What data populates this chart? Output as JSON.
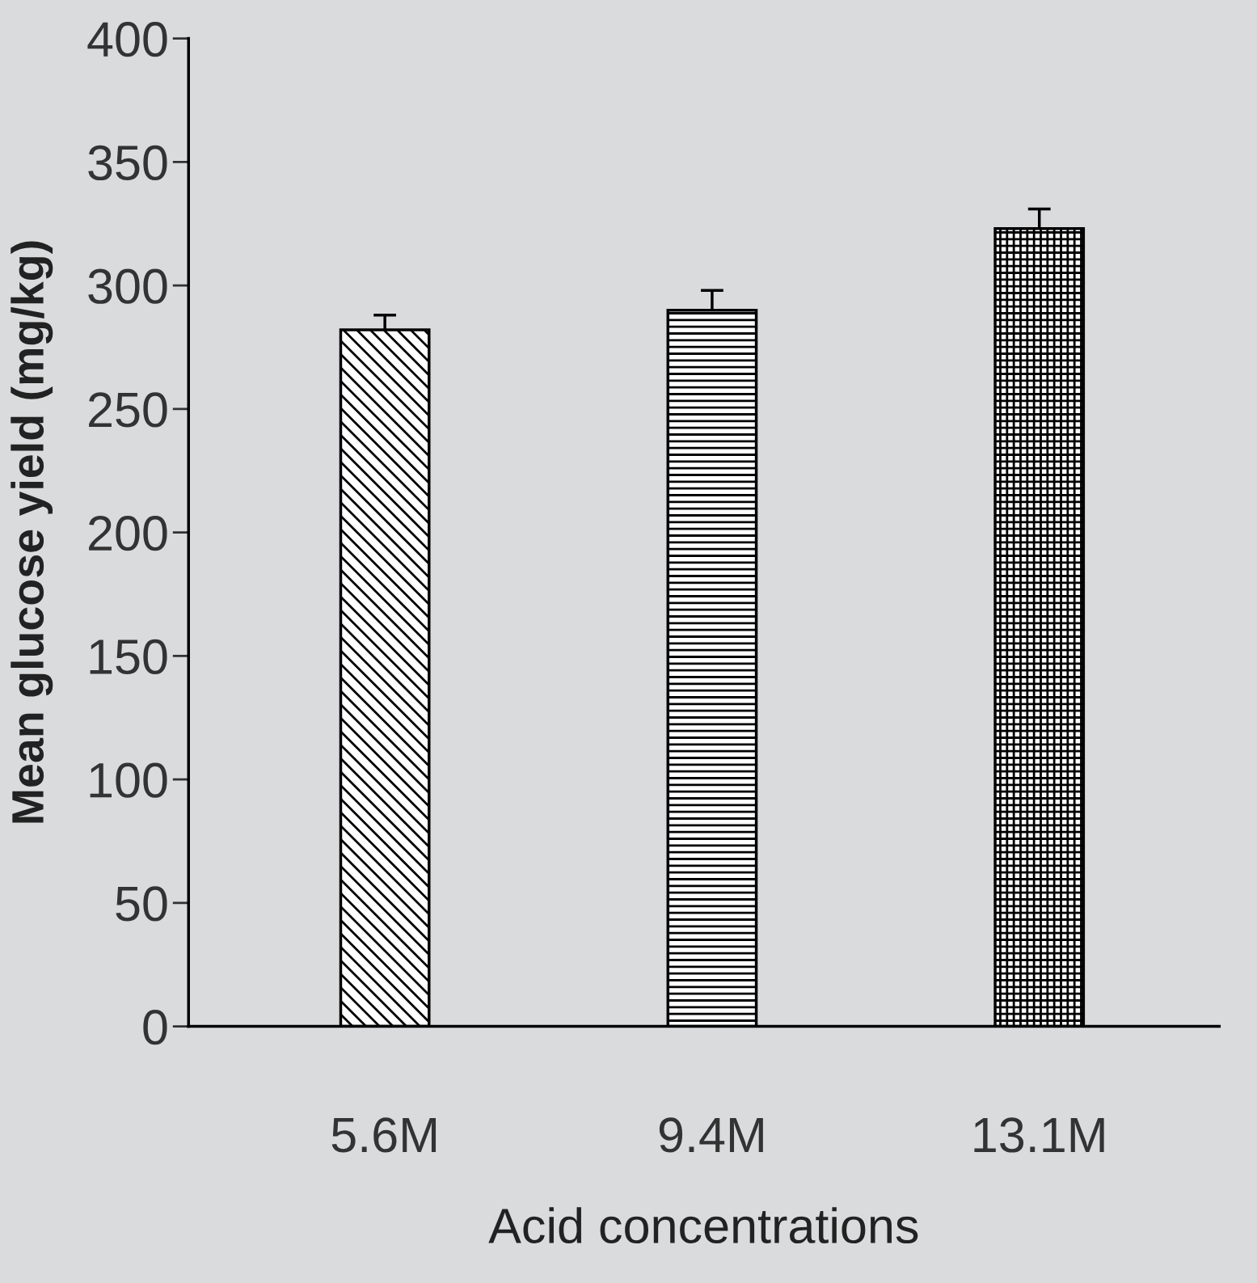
{
  "chart_data": {
    "type": "bar",
    "xlabel": "Acid concentrations",
    "ylabel": "Mean glucose yield (mg/kg)",
    "categories": [
      "5.6M",
      "9.4M",
      "13.1M"
    ],
    "values": [
      282,
      290,
      323
    ],
    "errors": [
      6,
      8,
      8
    ],
    "colors": [
      "#000000",
      "#000000",
      "#000000"
    ],
    "ylim": [
      0,
      400
    ],
    "yticks": [
      0,
      50,
      100,
      150,
      200,
      250,
      300,
      350,
      400
    ],
    "grid": false,
    "legend": false
  }
}
